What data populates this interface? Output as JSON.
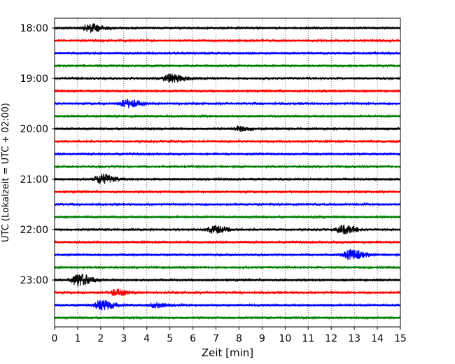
{
  "chart_data": {
    "type": "line",
    "subtype": "helicorder seismogram",
    "xlabel": "Zeit  [min]",
    "ylabel": "UTC (Lokalzeit = UTC + 02:00)",
    "xlim": [
      0,
      15
    ],
    "x_ticks": [
      0,
      1,
      2,
      3,
      4,
      5,
      6,
      7,
      8,
      9,
      10,
      11,
      12,
      13,
      14,
      15
    ],
    "y_tick_labels": [
      "18:00",
      "19:00",
      "20:00",
      "21:00",
      "22:00",
      "23:00"
    ],
    "vertical_grid": "dotted",
    "trace_colors": [
      "#000000",
      "#ff0000",
      "#0000ff",
      "#008000"
    ],
    "rows": [
      {
        "start": "18:00",
        "color": "#000000",
        "events": [
          {
            "t": 1.5,
            "amp": 6
          }
        ]
      },
      {
        "start": "18:15",
        "color": "#ff0000",
        "events": []
      },
      {
        "start": "18:30",
        "color": "#0000ff",
        "events": []
      },
      {
        "start": "18:45",
        "color": "#008000",
        "events": []
      },
      {
        "start": "19:00",
        "color": "#000000",
        "events": [
          {
            "t": 5.0,
            "amp": 6
          }
        ]
      },
      {
        "start": "19:15",
        "color": "#ff0000",
        "events": []
      },
      {
        "start": "19:30",
        "color": "#0000ff",
        "events": [
          {
            "t": 3.1,
            "amp": 6
          }
        ]
      },
      {
        "start": "19:45",
        "color": "#008000",
        "events": []
      },
      {
        "start": "20:00",
        "color": "#000000",
        "events": [
          {
            "t": 8.0,
            "amp": 3
          }
        ]
      },
      {
        "start": "20:15",
        "color": "#ff0000",
        "events": []
      },
      {
        "start": "20:30",
        "color": "#0000ff",
        "events": []
      },
      {
        "start": "20:45",
        "color": "#008000",
        "events": []
      },
      {
        "start": "21:00",
        "color": "#000000",
        "events": [
          {
            "t": 2.0,
            "amp": 7
          }
        ]
      },
      {
        "start": "21:15",
        "color": "#ff0000",
        "events": []
      },
      {
        "start": "21:30",
        "color": "#0000ff",
        "events": []
      },
      {
        "start": "21:45",
        "color": "#008000",
        "events": []
      },
      {
        "start": "22:00",
        "color": "#000000",
        "events": [
          {
            "t": 6.9,
            "amp": 5
          },
          {
            "t": 12.5,
            "amp": 6
          }
        ]
      },
      {
        "start": "22:15",
        "color": "#ff0000",
        "events": []
      },
      {
        "start": "22:30",
        "color": "#0000ff",
        "events": [
          {
            "t": 12.8,
            "amp": 7
          }
        ]
      },
      {
        "start": "22:45",
        "color": "#008000",
        "events": []
      },
      {
        "start": "23:00",
        "color": "#000000",
        "events": [
          {
            "t": 1.0,
            "amp": 9
          }
        ]
      },
      {
        "start": "23:15",
        "color": "#ff0000",
        "events": [
          {
            "t": 2.6,
            "amp": 4
          }
        ]
      },
      {
        "start": "23:30",
        "color": "#0000ff",
        "events": [
          {
            "t": 2.0,
            "amp": 7
          },
          {
            "t": 4.3,
            "amp": 3
          }
        ]
      },
      {
        "start": "23:45",
        "color": "#008000",
        "events": []
      }
    ]
  }
}
